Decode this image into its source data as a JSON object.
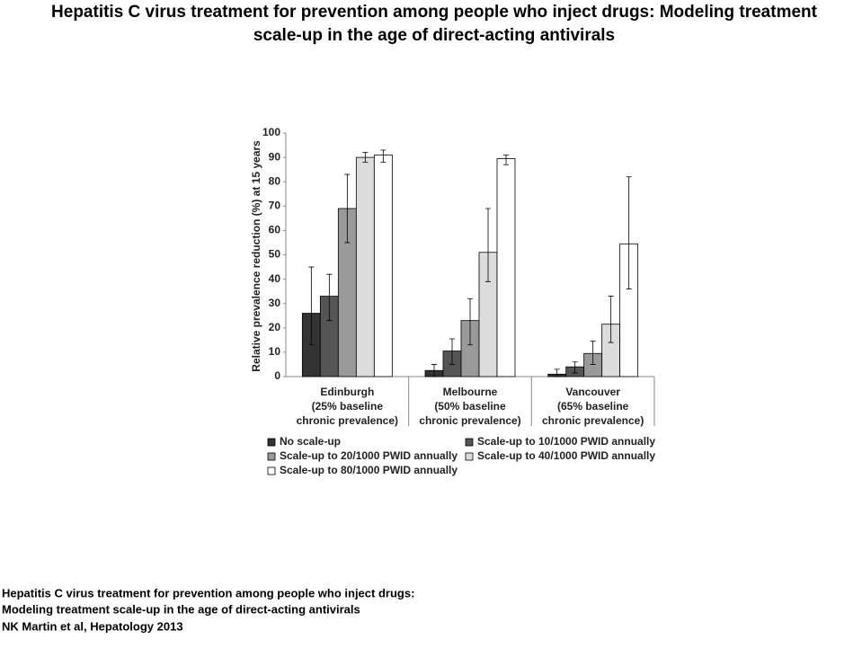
{
  "slide_title": [
    "Hepatitis C virus treatment for prevention among people who inject drugs: Modeling treatment",
    "scale-up in the age of direct-acting antivirals"
  ],
  "caption": [
    "Hepatitis C virus treatment for prevention among people who inject drugs:",
    "Modeling treatment scale-up in the age of direct-acting antivirals",
    "NK Martin et al, Hepatology 2013"
  ],
  "chart_data": {
    "type": "bar",
    "y_label": "Relative prevalence reduction (%) at 15 years",
    "categories": [
      [
        "Edinburgh",
        "(25% baseline",
        "chronic prevalence)"
      ],
      [
        "Melbourne",
        "(50% baseline",
        "chronic prevalence)"
      ],
      [
        "Vancouver",
        "(65% baseline",
        "chronic prevalence)"
      ]
    ],
    "series": [
      {
        "name": "No scale-up",
        "color": "#333333",
        "values": [
          26,
          2.5,
          1
        ],
        "lower": [
          13,
          0,
          0
        ],
        "upper": [
          45,
          5,
          3
        ]
      },
      {
        "name": "Scale-up to 10/1000 PWID annually",
        "color": "#555555",
        "values": [
          33,
          10.5,
          4
        ],
        "lower": [
          23,
          5,
          1.5
        ],
        "upper": [
          42,
          15.5,
          6
        ]
      },
      {
        "name": "Scale-up to 20/1000 PWID annually",
        "color": "#9a9a9a",
        "values": [
          69,
          23,
          9.5
        ],
        "lower": [
          55,
          13,
          5
        ],
        "upper": [
          83,
          32,
          14.5
        ]
      },
      {
        "name": "Scale-up to 40/1000 PWID annually",
        "color": "#dcdcdc",
        "values": [
          90,
          51,
          21.5
        ],
        "lower": [
          88,
          39,
          14
        ],
        "upper": [
          92,
          69,
          33
        ]
      },
      {
        "name": "Scale-up to 80/1000 PWID annually",
        "color": "#ffffff",
        "values": [
          91,
          89.5,
          54.5
        ],
        "lower": [
          88,
          87,
          36
        ],
        "upper": [
          93,
          91,
          82
        ]
      }
    ],
    "ylim": [
      0,
      100
    ],
    "yticks": [
      0,
      10,
      20,
      30,
      40,
      50,
      60,
      70,
      80,
      90,
      100
    ]
  }
}
